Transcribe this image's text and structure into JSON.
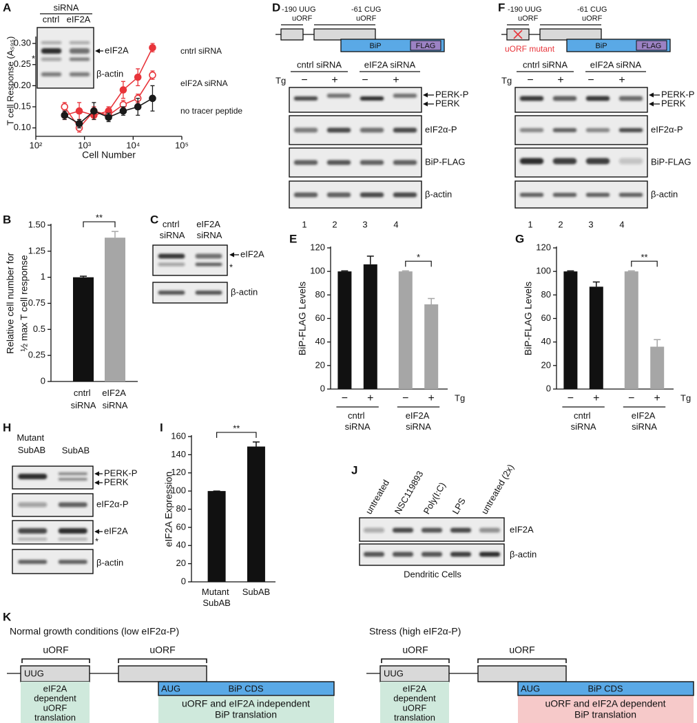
{
  "panel_labels": [
    "A",
    "B",
    "C",
    "D",
    "E",
    "F",
    "G",
    "H",
    "I",
    "J",
    "K"
  ],
  "chart_data": [
    {
      "type": "line",
      "xlabel": "Cell Number",
      "ylabel": "T cell Response (A₅₉₅)",
      "log_x": true,
      "x": [
        390,
        781,
        1563,
        3125,
        6250,
        12500,
        25000
      ],
      "xlim": [
        100,
        100000
      ],
      "xticks": [
        {
          "value": 100,
          "label": "10²"
        },
        {
          "value": 1000,
          "label": "10³"
        },
        {
          "value": 10000,
          "label": "10⁴"
        },
        {
          "value": 100000,
          "label": "10⁵"
        }
      ],
      "ylim": [
        0.08,
        0.31
      ],
      "yticks": [
        {
          "value": 0.1,
          "label": "0.10"
        },
        0.15,
        {
          "value": 0.2,
          "label": "0.20"
        },
        0.25,
        {
          "value": 0.3,
          "label": "0.30"
        }
      ],
      "series": [
        {
          "name": "cntrl siRNA",
          "color": "#e8343a",
          "marker": "filled",
          "values": [
            0.13,
            0.14,
            0.13,
            0.14,
            0.19,
            0.22,
            0.29
          ],
          "errors": [
            0.01,
            0.02,
            0.01,
            0.01,
            0.02,
            0.02,
            0.01
          ]
        },
        {
          "name": "eIF2A siRNA",
          "color": "#e8343a",
          "marker": "open",
          "values": [
            0.15,
            0.1,
            0.14,
            0.13,
            0.155,
            0.17,
            0.225
          ],
          "errors": [
            0.01,
            0.01,
            0.01,
            0.01,
            0.01,
            0.01,
            0.01
          ]
        },
        {
          "name": "no tracer peptide",
          "color": "#1a1a1a",
          "marker": "filled",
          "values": [
            0.13,
            0.11,
            0.14,
            0.125,
            0.14,
            0.15,
            0.17
          ],
          "errors": [
            0.01,
            0.01,
            0.02,
            0.01,
            0.01,
            0.02,
            0.03
          ]
        }
      ]
    },
    {
      "type": "bar",
      "ylabel": [
        "Relative cell number for",
        "½ max T cell response"
      ],
      "categories": [
        "cntrl siRNA",
        "eIF2A siRNA"
      ],
      "values": [
        1,
        1.38
      ],
      "errors": [
        0.01,
        0.06
      ],
      "colors": [
        "#111111",
        "#a6a6a6"
      ],
      "ylim": [
        0,
        1.5
      ],
      "yticks": [
        0,
        0.25,
        0.5,
        0.75,
        1,
        1.25,
        {
          "value": 1.5,
          "label": "1.50"
        }
      ],
      "significance": "**"
    },
    {
      "type": "bar",
      "ylabel": "BiP-FLAG Levels",
      "categories": [
        "−",
        "+",
        "−",
        "+"
      ],
      "groups": [
        "cntrl siRNA",
        "eIF2A siRNA"
      ],
      "treatment": "Tg",
      "values": [
        100,
        106,
        100,
        72
      ],
      "errors": [
        0.5,
        7,
        0.5,
        5
      ],
      "colors": [
        "#111111",
        "#111111",
        "#a6a6a6",
        "#a6a6a6"
      ],
      "ylim": [
        0,
        120
      ],
      "yticks": [
        0,
        20,
        40,
        60,
        80,
        100,
        120
      ],
      "significance": "*"
    },
    {
      "type": "bar",
      "ylabel": "BiP-FLAG Levels",
      "categories": [
        "−",
        "+",
        "−",
        "+"
      ],
      "groups": [
        "cntrl siRNA",
        "eIF2A siRNA"
      ],
      "treatment": "Tg",
      "values": [
        100,
        87,
        100,
        36
      ],
      "errors": [
        0.5,
        4,
        0.5,
        6
      ],
      "colors": [
        "#111111",
        "#111111",
        "#a6a6a6",
        "#a6a6a6"
      ],
      "ylim": [
        0,
        120
      ],
      "yticks": [
        0,
        20,
        40,
        60,
        80,
        100,
        120
      ],
      "significance": "**"
    },
    {
      "type": "bar",
      "ylabel": "eIF2A Expression",
      "categories": [
        "Mutant SubAB",
        "SubAB"
      ],
      "values": [
        100,
        149
      ],
      "errors": [
        0,
        5
      ],
      "colors": [
        "#111111",
        "#111111"
      ],
      "ylim": [
        0,
        160
      ],
      "yticks": [
        0,
        20,
        40,
        60,
        80,
        100,
        120,
        140,
        160
      ],
      "significance": "**"
    }
  ],
  "blots": {
    "A_inset": {
      "header": "siRNA",
      "lanes": [
        "cntrl",
        "eIF2A"
      ],
      "rows": [
        "eIF2A",
        "β-actin"
      ],
      "star": "*"
    },
    "C": {
      "lanes": [
        "cntrl siRNA",
        "eIF2A siRNA"
      ],
      "rows": [
        "eIF2A",
        "β-actin"
      ],
      "star": "*"
    },
    "D": {
      "construct": {
        "upstream": [
          "-190 UUG",
          "uORF"
        ],
        "downstream": [
          "-61 CUG",
          "uORF"
        ],
        "cds": "BiP",
        "tag": "FLAG"
      },
      "groups": [
        "cntrl siRNA",
        "eIF2A siRNA"
      ],
      "treatment": "Tg",
      "lanes": [
        "−",
        "+",
        "−",
        "+"
      ],
      "rows": [
        "PERK-P",
        "PERK",
        "eIF2α-P",
        "BiP-FLAG",
        "β-actin"
      ],
      "lane_numbers": [
        "1",
        "2",
        "3",
        "4"
      ]
    },
    "F": {
      "construct": {
        "upstream": [
          "-190 UUG",
          "uORF"
        ],
        "downstream": [
          "-61 CUG",
          "uORF"
        ],
        "cds": "BiP",
        "tag": "FLAG"
      },
      "mutant": "uORF mutant",
      "groups": [
        "cntrl siRNA",
        "eIF2A siRNA"
      ],
      "treatment": "Tg",
      "lanes": [
        "−",
        "+",
        "−",
        "+"
      ],
      "rows": [
        "PERK-P",
        "PERK",
        "eIF2α-P",
        "BiP-FLAG",
        "β-actin"
      ],
      "lane_numbers": [
        "1",
        "2",
        "3",
        "4"
      ]
    },
    "H": {
      "lanes": [
        "Mutant SubAB",
        "SubAB"
      ],
      "rows": [
        "PERK-P",
        "PERK",
        "eIF2α-P",
        "eIF2A",
        "β-actin"
      ],
      "star": "*"
    },
    "J": {
      "lanes": [
        "untreated",
        "NSC119893",
        "Poly(I:C)",
        "LPS",
        "untreated (2x)"
      ],
      "rows": [
        "eIF2A",
        "β-actin"
      ],
      "caption": "Dendritic Cells"
    }
  },
  "diagram": {
    "panels": [
      {
        "title": "Normal growth conditions (low eIF2α-P)",
        "uorf_labels": [
          "uORF",
          "uORF"
        ],
        "start_codons": [
          "UUG",
          "AUG"
        ],
        "cds": "BiP CDS",
        "boxes": [
          [
            "eIF2A",
            "dependent",
            "uORF",
            "translation"
          ],
          [
            "uORF and eIF2A independent",
            "BiP translation"
          ]
        ]
      },
      {
        "title": "Stress (high eIF2α-P)",
        "uorf_labels": [
          "uORF",
          "uORF"
        ],
        "start_codons": [
          "UUG",
          "AUG"
        ],
        "cds": "BiP CDS",
        "boxes": [
          [
            "eIF2A",
            "dependent",
            "uORF",
            "translation"
          ],
          [
            "uORF and eIF2A dependent",
            "BiP translation"
          ]
        ]
      }
    ]
  }
}
